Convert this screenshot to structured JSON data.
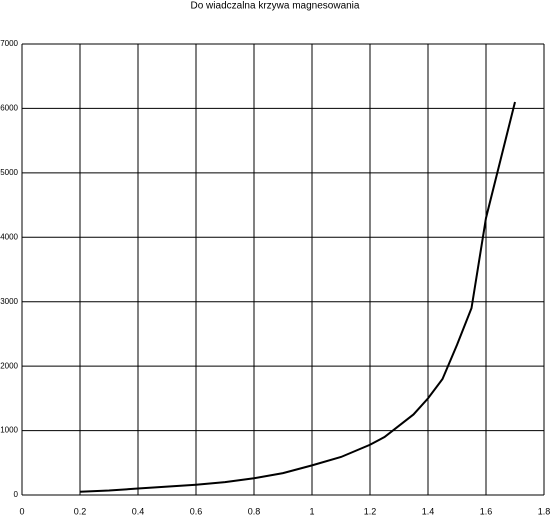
{
  "chart_data": {
    "type": "line",
    "title": "Do  wiadczalna krzywa magnesowania",
    "x": [
      0.2,
      0.3,
      0.4,
      0.5,
      0.6,
      0.7,
      0.8,
      0.9,
      1.0,
      1.1,
      1.2,
      1.25,
      1.35,
      1.4,
      1.45,
      1.5,
      1.55,
      1.6,
      1.65,
      1.7
    ],
    "values": [
      50,
      70,
      100,
      130,
      160,
      200,
      260,
      340,
      460,
      590,
      780,
      900,
      1250,
      1500,
      1800,
      2330,
      2900,
      4300,
      5200,
      6100
    ],
    "color": "#000000",
    "xlim": [
      0,
      1.8
    ],
    "xticks": [
      0,
      0.2,
      0.4,
      0.6,
      0.8,
      1,
      1.2,
      1.4,
      1.6,
      1.8
    ],
    "ylim": [
      0,
      7000
    ],
    "yticks": [
      0,
      1000,
      2000,
      3000,
      4000,
      5000,
      6000,
      7000
    ],
    "grid": true
  }
}
